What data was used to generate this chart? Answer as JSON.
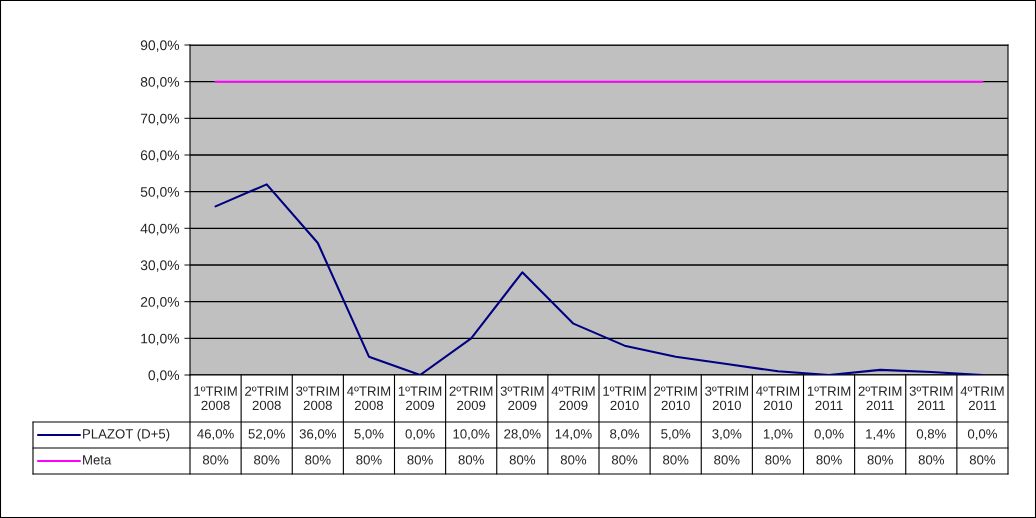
{
  "chart_data": {
    "type": "line",
    "categories": [
      "1ºTRIM 2008",
      "2ºTRIM 2008",
      "3ºTRIM 2008",
      "4ºTRIM 2008",
      "1ºTRIM 2009",
      "2ºTRIM 2009",
      "3ºTRIM 2009",
      "4ºTRIM 2009",
      "1ºTRIM 2010",
      "2ºTRIM 2010",
      "3ºTRIM 2010",
      "4ºTRIM 2010",
      "1ºTRIM 2011",
      "2ºTRIM 2011",
      "3ºTRIM 2011",
      "4ºTRIM 2011"
    ],
    "series": [
      {
        "name": "PLAZOT (D+5)",
        "color": "#000080",
        "values": [
          46.0,
          52.0,
          36.0,
          5.0,
          0.0,
          10.0,
          28.0,
          14.0,
          8.0,
          5.0,
          3.0,
          1.0,
          0.0,
          1.4,
          0.8,
          0.0
        ],
        "value_labels": [
          "46,0%",
          "52,0%",
          "36,0%",
          "5,0%",
          "0,0%",
          "10,0%",
          "28,0%",
          "14,0%",
          "8,0%",
          "5,0%",
          "3,0%",
          "1,0%",
          "0,0%",
          "1,4%",
          "0,8%",
          "0,0%"
        ]
      },
      {
        "name": "Meta",
        "color": "#ff00ff",
        "values": [
          80,
          80,
          80,
          80,
          80,
          80,
          80,
          80,
          80,
          80,
          80,
          80,
          80,
          80,
          80,
          80
        ],
        "value_labels": [
          "80%",
          "80%",
          "80%",
          "80%",
          "80%",
          "80%",
          "80%",
          "80%",
          "80%",
          "80%",
          "80%",
          "80%",
          "80%",
          "80%",
          "80%",
          "80%"
        ]
      }
    ],
    "ylim": [
      0,
      90
    ],
    "yticks": [
      {
        "value": 0,
        "label": "0,0%"
      },
      {
        "value": 10,
        "label": "10,0%"
      },
      {
        "value": 20,
        "label": "20,0%"
      },
      {
        "value": 30,
        "label": "30,0%"
      },
      {
        "value": 40,
        "label": "40,0%"
      },
      {
        "value": 50,
        "label": "50,0%"
      },
      {
        "value": 60,
        "label": "60,0%"
      },
      {
        "value": 70,
        "label": "70,0%"
      },
      {
        "value": 80,
        "label": "80,0%"
      },
      {
        "value": 90,
        "label": "90,0%"
      }
    ],
    "grid": "y",
    "legend": "bottom",
    "marker": "none",
    "line_style": "solid"
  }
}
